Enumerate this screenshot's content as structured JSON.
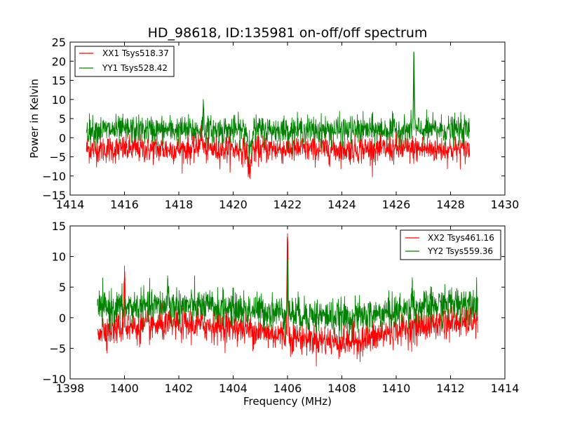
{
  "chart_data": [
    {
      "type": "line",
      "title": "HD_98618, ID:135981 on-off/off spectrum",
      "xlabel": "",
      "ylabel": "Power in Kelvin",
      "xlim": [
        1414,
        1430
      ],
      "ylim": [
        -15,
        25
      ],
      "xticks": [
        "1414",
        "1416",
        "1418",
        "1420",
        "1422",
        "1424",
        "1426",
        "1428",
        "1430"
      ],
      "yticks": [
        "−15",
        "−10",
        "−5",
        "0",
        "5",
        "10",
        "15",
        "20",
        "25"
      ],
      "legend_position": "upper-left",
      "x_range": [
        1414.6,
        1428.7
      ],
      "series": [
        {
          "name": "XX1 Tsys518.37",
          "color": "#ff0000",
          "mean": -3.0,
          "noise": 1.8,
          "features": [
            {
              "type": "dip",
              "x": 1420.6,
              "y": -10.5
            },
            {
              "type": "bump",
              "x": 1418.8,
              "y": 0.5
            }
          ]
        },
        {
          "name": "YY1 Tsys528.42",
          "color": "#008000",
          "mean": 2.0,
          "noise": 1.8,
          "features": [
            {
              "type": "spike",
              "x": 1426.65,
              "y": 21.5
            },
            {
              "type": "spike",
              "x": 1418.9,
              "y": 8.0
            },
            {
              "type": "dip",
              "x": 1420.6,
              "y": -4.5
            }
          ]
        }
      ]
    },
    {
      "type": "line",
      "title": "",
      "xlabel": "Frequency (MHz)",
      "ylabel": "",
      "xlim": [
        1398,
        1414
      ],
      "ylim": [
        -10,
        15
      ],
      "xticks": [
        "1398",
        "1400",
        "1402",
        "1404",
        "1406",
        "1408",
        "1410",
        "1412",
        "1414"
      ],
      "yticks": [
        "−10",
        "−5",
        "0",
        "5",
        "10",
        "15"
      ],
      "legend_position": "upper-right",
      "x_range": [
        1399.0,
        1413.0
      ],
      "series": [
        {
          "name": "XX2 Tsys461.16",
          "color": "#ff0000",
          "baseline": [
            [
              1399.0,
              -2.0
            ],
            [
              1402.0,
              -1.0
            ],
            [
              1404.0,
              -1.5
            ],
            [
              1406.0,
              -3.0
            ],
            [
              1408.0,
              -4.0
            ],
            [
              1409.0,
              -3.5
            ],
            [
              1410.0,
              -2.0
            ],
            [
              1411.5,
              -1.0
            ],
            [
              1413.0,
              -0.5
            ]
          ],
          "noise": 1.3,
          "features": [
            {
              "type": "spike",
              "x": 1400.0,
              "y": 8.5
            },
            {
              "type": "spike",
              "x": 1406.0,
              "y": 13.8
            }
          ]
        },
        {
          "name": "YY2 Tsys559.36",
          "color": "#008000",
          "baseline": [
            [
              1399.0,
              1.5
            ],
            [
              1402.0,
              2.0
            ],
            [
              1404.0,
              1.5
            ],
            [
              1406.0,
              0.8
            ],
            [
              1408.0,
              0.0
            ],
            [
              1409.0,
              0.3
            ],
            [
              1410.0,
              1.0
            ],
            [
              1411.5,
              2.0
            ],
            [
              1413.0,
              2.8
            ]
          ],
          "noise": 1.4,
          "features": [
            {
              "type": "spike",
              "x": 1406.0,
              "y": 7.8
            },
            {
              "type": "spike",
              "x": 1410.6,
              "y": 6.2
            },
            {
              "type": "spike",
              "x": 1401.6,
              "y": 6.4
            }
          ]
        }
      ]
    }
  ]
}
